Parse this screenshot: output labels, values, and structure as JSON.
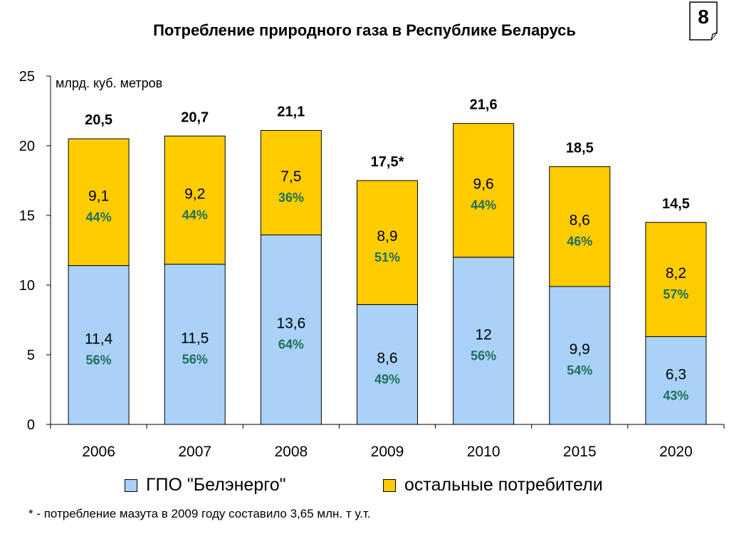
{
  "page": {
    "number": "8"
  },
  "footnote": "* - потребление мазута в 2009 году составило 3,65 млн. т у.т.",
  "colors": {
    "series1": "#aad1f7",
    "series2": "#ffcc00",
    "pct_text": "#1f6f5a",
    "axis": "#000000"
  },
  "chart_data": {
    "type": "bar",
    "stacked": true,
    "title": "Потребление природного газа в Республике Беларусь",
    "unit_label": "млрд. куб. метров",
    "ylim": [
      0,
      25
    ],
    "yticks": [
      "0",
      "5",
      "10",
      "15",
      "20",
      "25"
    ],
    "grid": false,
    "legend_position": "bottom",
    "categories": [
      "2006",
      "2007",
      "2008",
      "2009",
      "2010",
      "2015",
      "2020"
    ],
    "totals": [
      "20,5",
      "20,7",
      "21,1",
      "17,5*",
      "21,6",
      "18,5",
      "14,5"
    ],
    "total_values": [
      20.5,
      20.7,
      21.1,
      17.5,
      21.6,
      18.5,
      14.5
    ],
    "series": [
      {
        "name": "ГПО \"Белэнерго\"",
        "values": [
          11.4,
          11.5,
          13.6,
          8.6,
          12,
          9.9,
          6.3
        ],
        "labels": [
          "11,4",
          "11,5",
          "13,6",
          "8,6",
          "12",
          "9,9",
          "6,3"
        ],
        "percents": [
          "56%",
          "56%",
          "64%",
          "49%",
          "56%",
          "54%",
          "43%"
        ]
      },
      {
        "name": "остальные потребители",
        "values": [
          9.1,
          9.2,
          7.5,
          8.9,
          9.6,
          8.6,
          8.2
        ],
        "labels": [
          "9,1",
          "9,2",
          "7,5",
          "8,9",
          "9,6",
          "8,6",
          "8,2"
        ],
        "percents": [
          "44%",
          "44%",
          "36%",
          "51%",
          "44%",
          "46%",
          "57%"
        ]
      }
    ]
  }
}
